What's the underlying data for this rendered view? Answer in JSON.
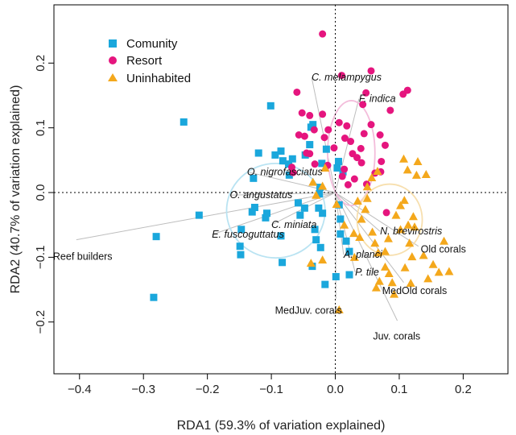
{
  "chart_data": {
    "type": "scatter",
    "xlabel": "RDA1 (59.3% of variation explained)",
    "ylabel": "RDA2 (40.7% of variation explained)",
    "xlim": [
      -0.44,
      0.27
    ],
    "ylim": [
      -0.28,
      0.29
    ],
    "xticks": [
      -0.4,
      -0.3,
      -0.2,
      -0.1,
      0.0,
      0.1,
      0.2
    ],
    "yticks": [
      -0.2,
      -0.1,
      0.0,
      0.1,
      0.2
    ],
    "xtick_labels": [
      "−0.4",
      "−0.3",
      "−0.2",
      "−0.1",
      "0.0",
      "0.1",
      "0.2"
    ],
    "ytick_labels": [
      "−0.2",
      "−0.1",
      "0.0",
      "0.1",
      "0.2"
    ],
    "legend_position": "top-left",
    "colors": {
      "Comunity": "#1aa7dc",
      "Resort": "#e5157e",
      "Uninhabited": "#f4a81c",
      "ellipse_Comunity": "#b9e3f2",
      "ellipse_Resort": "#f3bddb",
      "ellipse_Uninhabited": "#f7dfae",
      "vector": "#bdbdbd"
    },
    "series": [
      {
        "name": "Comunity",
        "marker": "square",
        "points": [
          [
            -0.237,
            0.109
          ],
          [
            -0.28,
            -0.068
          ],
          [
            -0.284,
            -0.162
          ],
          [
            -0.213,
            -0.035
          ],
          [
            -0.149,
            -0.083
          ],
          [
            -0.148,
            -0.096
          ],
          [
            -0.147,
            -0.057
          ],
          [
            -0.13,
            -0.03
          ],
          [
            -0.126,
            -0.023
          ],
          [
            -0.128,
            0.022
          ],
          [
            -0.12,
            0.061
          ],
          [
            -0.109,
            -0.039
          ],
          [
            -0.107,
            -0.032
          ],
          [
            -0.101,
            0.134
          ],
          [
            -0.085,
            -0.067
          ],
          [
            -0.083,
            -0.108
          ],
          [
            -0.094,
            0.058
          ],
          [
            -0.085,
            0.064
          ],
          [
            -0.082,
            0.049
          ],
          [
            -0.073,
            0.044
          ],
          [
            -0.072,
            0.027
          ],
          [
            -0.067,
            0.052
          ],
          [
            -0.058,
            -0.016
          ],
          [
            -0.055,
            -0.035
          ],
          [
            -0.048,
            -0.024
          ],
          [
            -0.047,
            0.058
          ],
          [
            -0.038,
            0.101
          ],
          [
            -0.035,
            0.105
          ],
          [
            -0.04,
            0.074
          ],
          [
            -0.032,
            -0.057
          ],
          [
            -0.03,
            -0.073
          ],
          [
            -0.036,
            -0.114
          ],
          [
            -0.025,
            -0.002
          ],
          [
            -0.024,
            0.008
          ],
          [
            -0.026,
            -0.024
          ],
          [
            -0.023,
            -0.085
          ],
          [
            -0.021,
            0.045
          ],
          [
            -0.02,
            -0.032
          ],
          [
            -0.016,
            -0.142
          ],
          [
            -0.014,
            0.067
          ],
          [
            0.003,
            0.038
          ],
          [
            0.005,
            0.048
          ],
          [
            0.006,
            -0.019
          ],
          [
            0.008,
            -0.041
          ],
          [
            0.012,
            0.032
          ],
          [
            0.017,
            -0.075
          ],
          [
            0.022,
            -0.091
          ],
          [
            0.022,
            -0.127
          ],
          [
            0.001,
            -0.13
          ],
          [
            0.008,
            -0.064
          ]
        ]
      },
      {
        "name": "Resort",
        "marker": "circle",
        "points": [
          [
            -0.02,
            0.245
          ],
          [
            -0.06,
            0.155
          ],
          [
            0.01,
            0.181
          ],
          [
            0.056,
            0.188
          ],
          [
            0.048,
            0.154
          ],
          [
            0.043,
            0.136
          ],
          [
            0.086,
            0.127
          ],
          [
            0.113,
            0.158
          ],
          [
            0.106,
            0.152
          ],
          [
            -0.052,
            0.123
          ],
          [
            -0.04,
            0.119
          ],
          [
            -0.02,
            0.121
          ],
          [
            -0.057,
            0.089
          ],
          [
            -0.048,
            0.087
          ],
          [
            -0.045,
            0.061
          ],
          [
            -0.033,
            0.097
          ],
          [
            -0.017,
            0.085
          ],
          [
            -0.04,
            0.06
          ],
          [
            -0.032,
            0.044
          ],
          [
            -0.068,
            0.039
          ],
          [
            -0.066,
            0.031
          ],
          [
            -0.011,
            0.097
          ],
          [
            -0.002,
            0.069
          ],
          [
            0.006,
            0.108
          ],
          [
            0.015,
            0.084
          ],
          [
            0.018,
            0.103
          ],
          [
            0.024,
            0.079
          ],
          [
            0.027,
            0.06
          ],
          [
            0.03,
            0.021
          ],
          [
            0.034,
            0.054
          ],
          [
            0.04,
            0.068
          ],
          [
            0.045,
            0.091
          ],
          [
            0.041,
            0.046
          ],
          [
            0.049,
            0.013
          ],
          [
            0.056,
            0.105
          ],
          [
            0.062,
            0.03
          ],
          [
            0.071,
            0.032
          ],
          [
            0.072,
            0.048
          ],
          [
            0.078,
            0.073
          ],
          [
            0.08,
            -0.031
          ],
          [
            0.02,
            0.012
          ],
          [
            -0.012,
            0.042
          ],
          [
            0.011,
            0.025
          ],
          [
            0.014,
            0.036
          ],
          [
            0.07,
            0.089
          ]
        ]
      },
      {
        "name": "Uninhabited",
        "marker": "triangle",
        "points": [
          [
            -0.016,
            0.038
          ],
          [
            -0.035,
            0.016
          ],
          [
            -0.02,
            0.01
          ],
          [
            -0.03,
            -0.004
          ],
          [
            0.002,
            -0.018
          ],
          [
            0.014,
            -0.05
          ],
          [
            0.029,
            -0.063
          ],
          [
            0.038,
            -0.069
          ],
          [
            0.041,
            -0.041
          ],
          [
            0.047,
            -0.026
          ],
          [
            0.05,
            -0.009
          ],
          [
            0.05,
            0.009
          ],
          [
            0.057,
            0.023
          ],
          [
            0.066,
            0.033
          ],
          [
            0.058,
            -0.061
          ],
          [
            0.062,
            -0.078
          ],
          [
            0.067,
            -0.093
          ],
          [
            0.078,
            -0.091
          ],
          [
            0.083,
            -0.071
          ],
          [
            0.069,
            -0.137
          ],
          [
            0.064,
            -0.147
          ],
          [
            0.078,
            -0.115
          ],
          [
            0.084,
            -0.125
          ],
          [
            0.089,
            -0.139
          ],
          [
            0.095,
            -0.035
          ],
          [
            0.102,
            -0.02
          ],
          [
            0.102,
            -0.057
          ],
          [
            0.109,
            -0.116
          ],
          [
            0.107,
            0.052
          ],
          [
            0.113,
            0.035
          ],
          [
            0.108,
            -0.012
          ],
          [
            0.114,
            -0.05
          ],
          [
            0.116,
            -0.078
          ],
          [
            0.12,
            -0.099
          ],
          [
            0.124,
            -0.053
          ],
          [
            0.118,
            -0.14
          ],
          [
            0.127,
            0.027
          ],
          [
            0.129,
            0.048
          ],
          [
            0.142,
            0.028
          ],
          [
            0.138,
            -0.097
          ],
          [
            0.145,
            -0.133
          ],
          [
            0.153,
            -0.111
          ],
          [
            0.162,
            -0.123
          ],
          [
            0.17,
            -0.075
          ],
          [
            0.178,
            -0.122
          ],
          [
            0.122,
            -0.037
          ],
          [
            0.092,
            -0.157
          ],
          [
            -0.02,
            -0.104
          ],
          [
            -0.038,
            -0.109
          ],
          [
            0.006,
            -0.181
          ],
          [
            0.035,
            -0.013
          ],
          [
            0.03,
            -0.1
          ]
        ]
      }
    ],
    "ellipses": [
      {
        "group": "Comunity",
        "center": [
          -0.093,
          -0.028
        ],
        "radii": [
          0.077,
          0.073
        ]
      },
      {
        "group": "Resort",
        "center": [
          0.025,
          0.061
        ],
        "radii": [
          0.037,
          0.081
        ]
      },
      {
        "group": "Uninhabited",
        "center": [
          0.085,
          -0.042
        ],
        "radii": [
          0.051,
          0.055
        ]
      }
    ],
    "species_labels": [
      {
        "label": "C. melampygus",
        "xy": [
          -0.037,
          0.178
        ]
      },
      {
        "label": "F. indica",
        "xy": [
          0.037,
          0.145
        ]
      },
      {
        "label": "O. nigrofasciatus",
        "xy": [
          -0.138,
          0.032
        ]
      },
      {
        "label": "O. angustatus",
        "xy": [
          -0.165,
          -0.004
        ]
      },
      {
        "label": "C. miniata",
        "xy": [
          -0.1,
          -0.05
        ]
      },
      {
        "label": "E. fuscoguttatus",
        "xy": [
          -0.193,
          -0.065
        ]
      },
      {
        "label": "N. brevirostris",
        "xy": [
          0.07,
          -0.06
        ]
      },
      {
        "label": "A. planci",
        "xy": [
          0.013,
          -0.096
        ]
      },
      {
        "label": "P. tile",
        "xy": [
          0.031,
          -0.123
        ]
      }
    ],
    "variable_vectors": [
      {
        "label": "Reef builders",
        "end": [
          -0.405,
          -0.073
        ],
        "label_xy": [
          -0.395,
          -0.099
        ]
      },
      {
        "label": "Old corals",
        "end": [
          0.13,
          -0.083
        ],
        "label_xy": [
          0.169,
          -0.088
        ]
      },
      {
        "label": "MedOld corals",
        "end": [
          0.107,
          -0.139
        ],
        "label_xy": [
          0.124,
          -0.152
        ]
      },
      {
        "label": "Juv. corals",
        "end": [
          0.097,
          -0.198
        ],
        "label_xy": [
          0.096,
          -0.222
        ]
      },
      {
        "label": "MedJuv. corals",
        "end": [
          0.001,
          -0.164
        ],
        "label_xy": [
          -0.042,
          -0.182
        ]
      }
    ]
  },
  "legend": {
    "items": [
      {
        "label": "Comunity"
      },
      {
        "label": "Resort"
      },
      {
        "label": "Uninhabited"
      }
    ]
  }
}
